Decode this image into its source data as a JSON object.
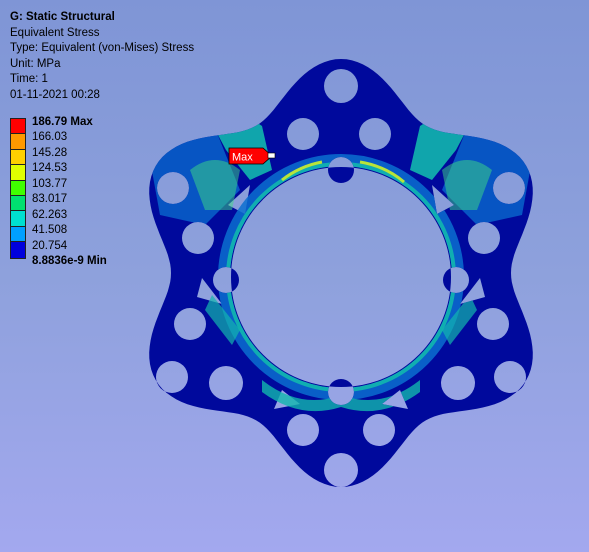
{
  "info": {
    "title": "G: Static Structural",
    "result": "Equivalent Stress",
    "type": "Type: Equivalent (von-Mises) Stress",
    "unit": "Unit: MPa",
    "time": "Time: 1",
    "timestamp": "01-11-2021 00:28"
  },
  "legend": {
    "levels": [
      {
        "label": "186.79 Max",
        "color": "#ff0000",
        "bold": true
      },
      {
        "label": "166.03",
        "color": "#ff9900",
        "bold": false
      },
      {
        "label": "145.28",
        "color": "#ffd000",
        "bold": false
      },
      {
        "label": "124.53",
        "color": "#e0ff00",
        "bold": false
      },
      {
        "label": "103.77",
        "color": "#40ff00",
        "bold": false
      },
      {
        "label": "83.017",
        "color": "#00e070",
        "bold": false
      },
      {
        "label": "62.263",
        "color": "#00e0d0",
        "bold": false
      },
      {
        "label": "41.508",
        "color": "#00a0ff",
        "bold": false
      },
      {
        "label": "20.754",
        "color": "#0000dd",
        "bold": false
      },
      {
        "label": "8.8836e-9 Min",
        "color": null,
        "bold": true
      }
    ]
  },
  "probe": {
    "label": "Max",
    "color": "#ff0000"
  },
  "model": {
    "colors": {
      "base": "#00099c",
      "low": "#0a6fd0",
      "mid": "#12b7ae",
      "high": "#3ddc86",
      "peak": "#b8e43a"
    }
  }
}
